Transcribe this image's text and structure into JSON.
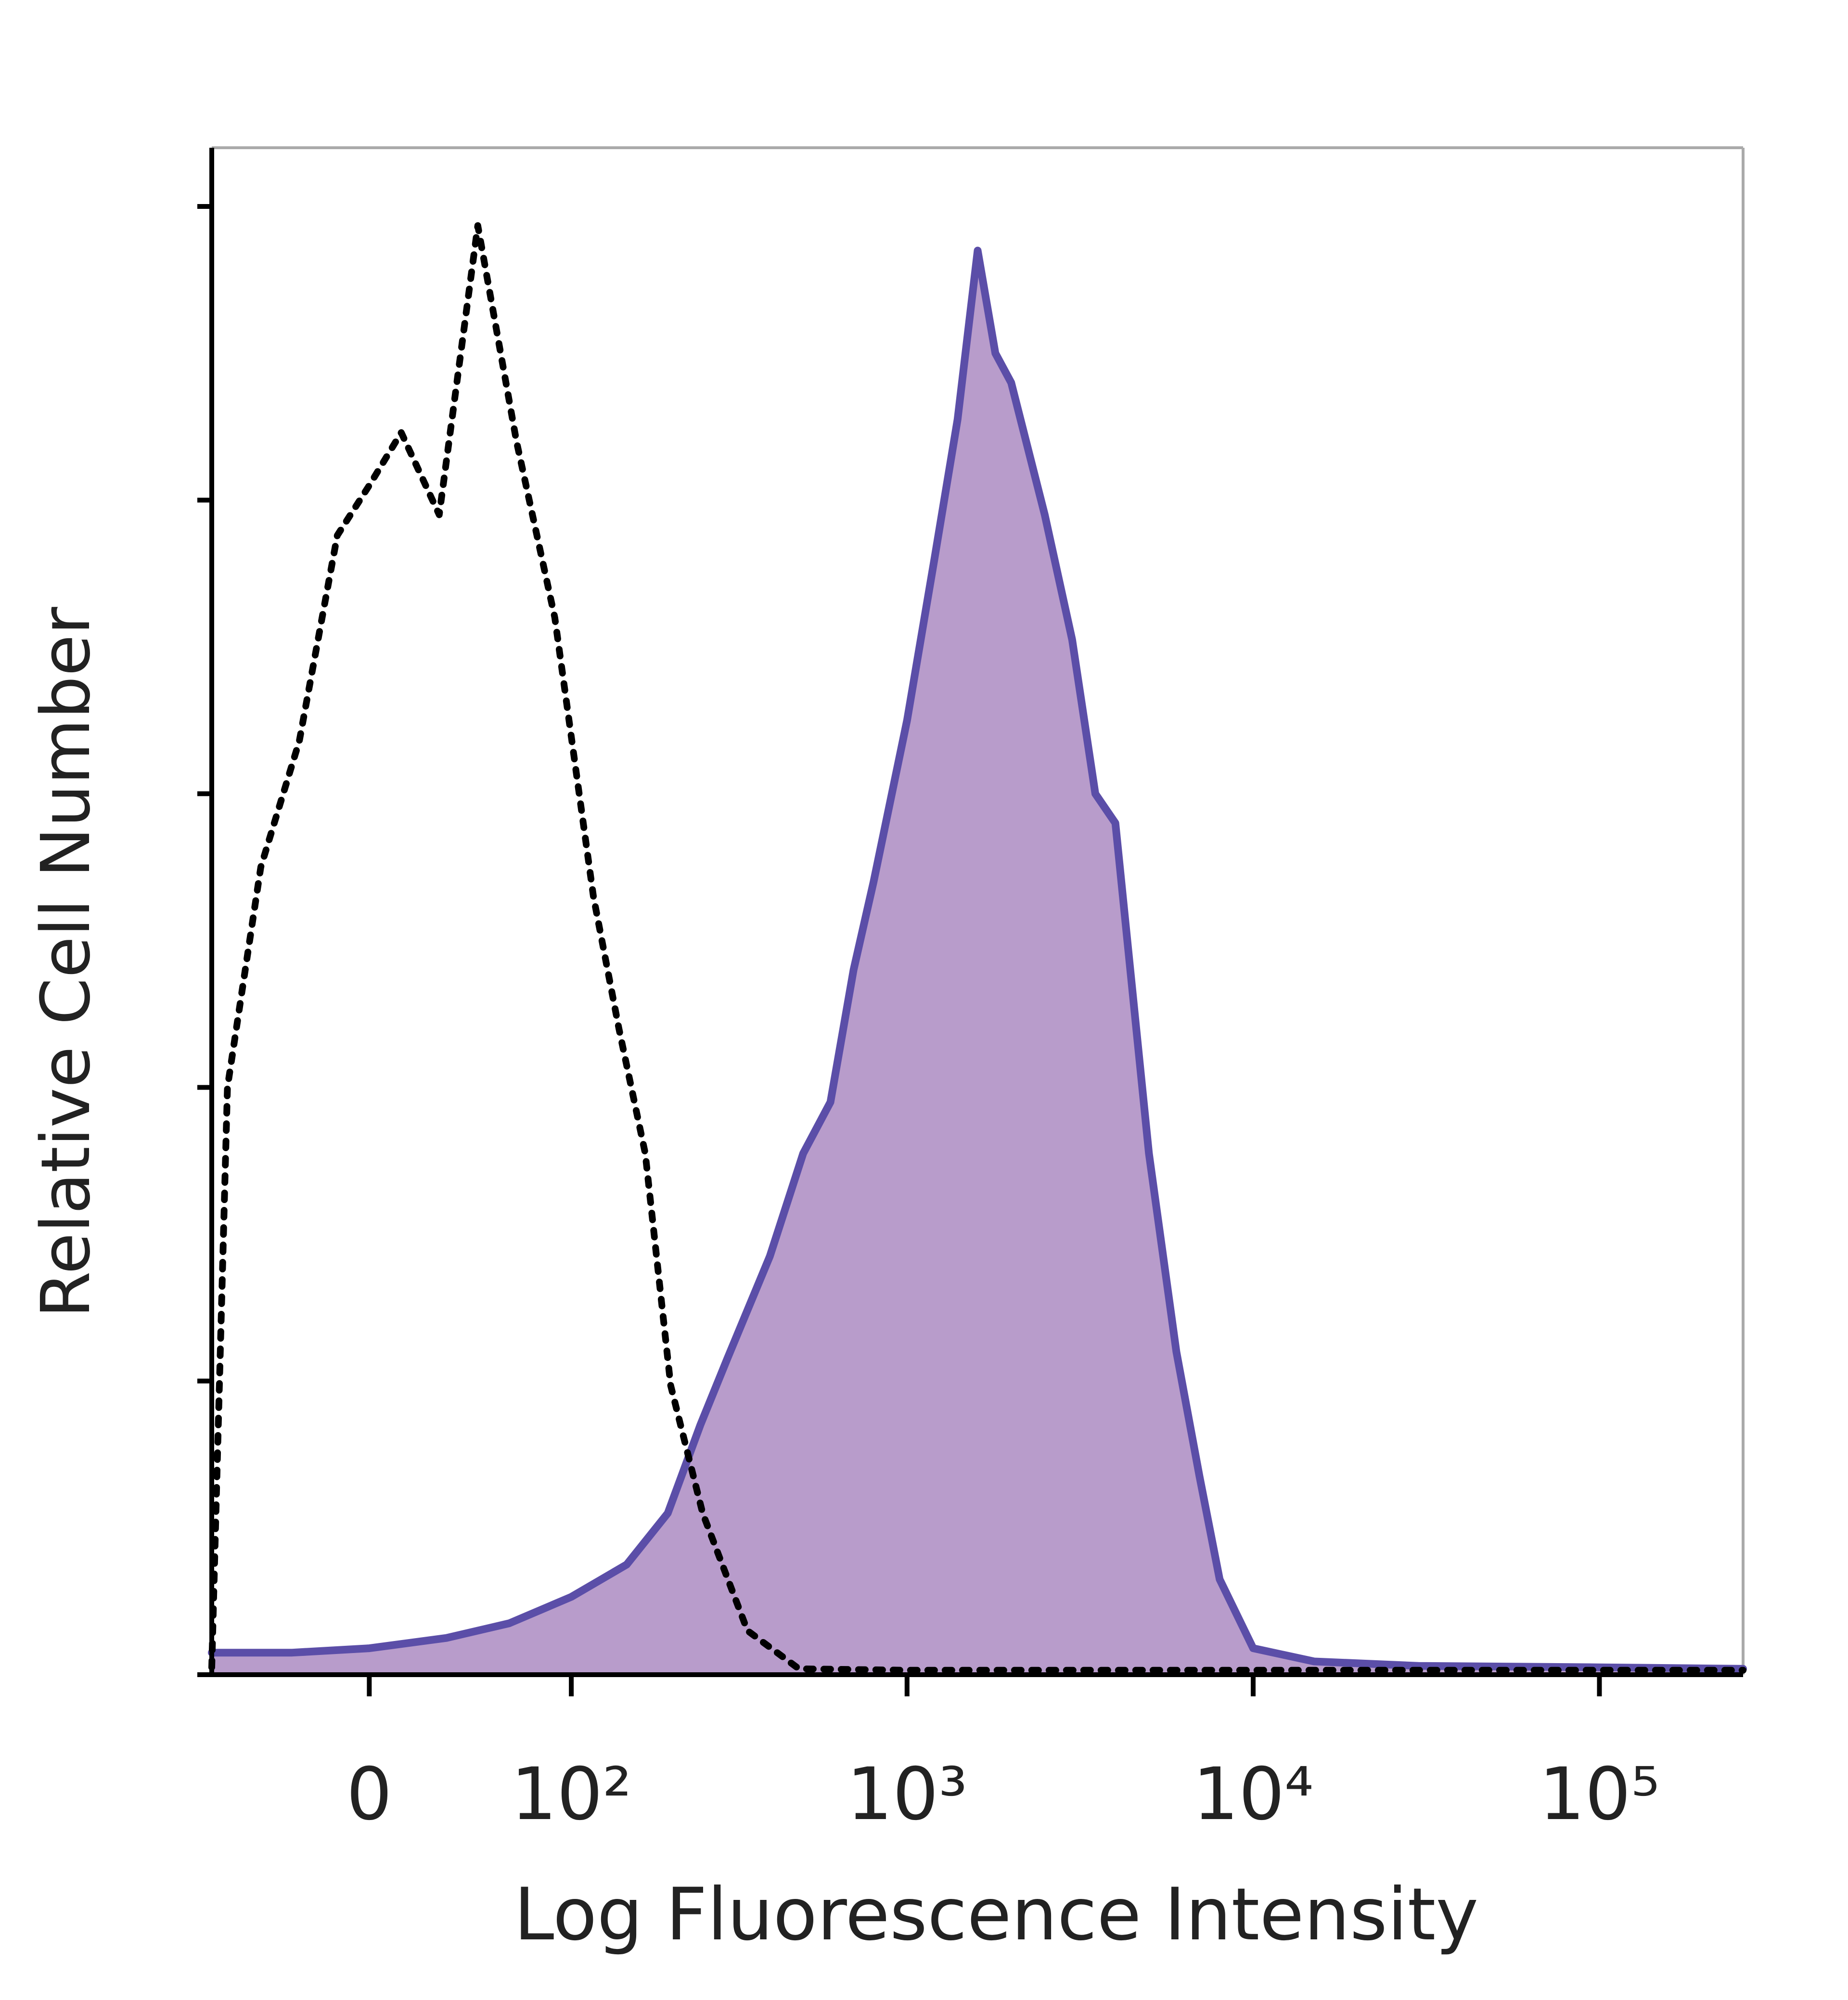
{
  "chart_data": {
    "type": "histogram-overlay",
    "xlabel": "Log Fluorescence Intensity",
    "ylabel": "Relative Cell Number",
    "xscale": "biexponential",
    "xlim": [
      -70,
      260000
    ],
    "xticks": [
      0,
      {
        "value": 100,
        "label": "10²"
      },
      {
        "value": 1000,
        "label": "10³"
      },
      {
        "value": 10000,
        "label": "10⁴"
      },
      {
        "value": 100000,
        "label": "10⁵"
      }
    ],
    "ylim": [
      0,
      104
    ],
    "yticks": [
      0,
      20,
      40,
      60,
      80,
      100
    ],
    "series": [
      {
        "color": "#5b4ea8",
        "fill": "#b89ccb",
        "style": "solid",
        "x": [
          -70,
          -60,
          -30,
          0,
          30,
          60,
          100,
          150,
          200,
          250,
          300,
          400,
          500,
          600,
          700,
          800,
          1000,
          1200,
          1400,
          1600,
          1800,
          2000,
          2500,
          3000,
          3500,
          4000,
          5000,
          6000,
          7000,
          8000,
          10000,
          15000,
          30000,
          100000,
          260000
        ],
        "values": [
          1.5,
          1.5,
          1.5,
          1.8,
          2.5,
          3.5,
          5.3,
          7.5,
          11,
          17,
          21.5,
          28.5,
          35.5,
          39,
          48,
          54,
          65,
          76,
          85.5,
          97,
          90,
          88,
          79,
          70.5,
          60,
          58,
          35.5,
          22,
          13.5,
          6.5,
          1.8,
          0.9,
          0.6,
          0.5,
          0.4
        ]
      },
      {
        "color": "#000000",
        "style": "dotted",
        "x": [
          -70,
          -61,
          -44,
          -27,
          -12,
          0,
          12,
          27,
          44,
          64,
          88,
          118,
          142,
          171,
          204,
          254,
          344,
          486,
          1000,
          10000,
          260000
        ],
        "values": [
          0.5,
          40,
          55,
          63.6,
          77.6,
          81,
          84.6,
          79,
          98.7,
          84,
          72,
          53,
          44,
          35.5,
          19.7,
          11,
          3,
          0.4,
          0.3,
          0.3,
          0.3
        ]
      }
    ]
  }
}
